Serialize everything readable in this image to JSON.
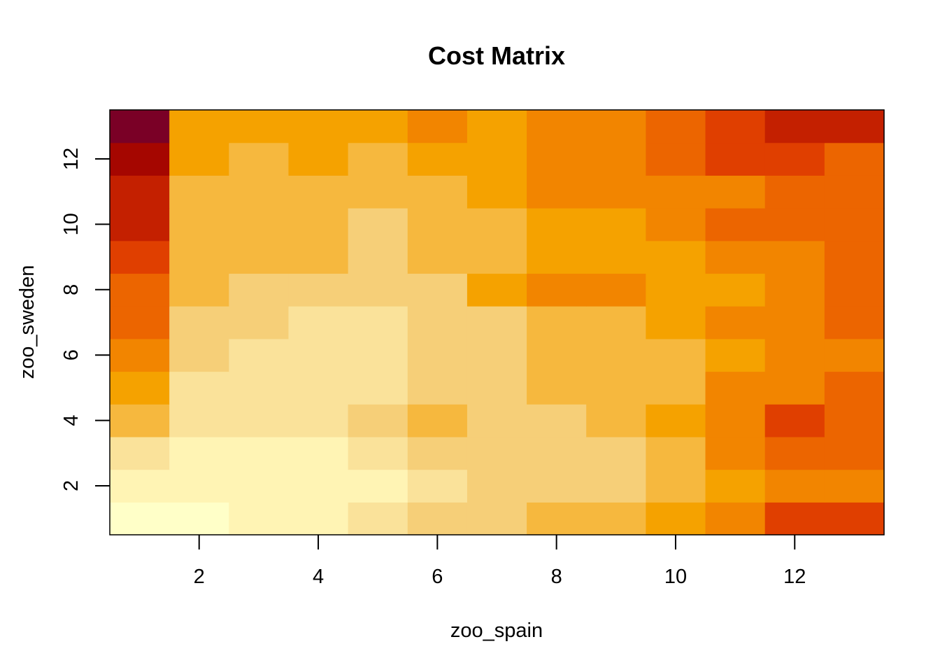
{
  "chart_data": {
    "type": "heatmap",
    "title": "Cost Matrix",
    "xlabel": "zoo_spain",
    "ylabel": "zoo_sweden",
    "x": [
      1,
      2,
      3,
      4,
      5,
      6,
      7,
      8,
      9,
      10,
      11,
      12,
      13
    ],
    "y": [
      1,
      2,
      3,
      4,
      5,
      6,
      7,
      8,
      9,
      10,
      11,
      12,
      13
    ],
    "xlim": [
      0.5,
      13.5
    ],
    "ylim": [
      0.5,
      13.5
    ],
    "xticks": [
      2,
      4,
      6,
      8,
      10,
      12
    ],
    "yticks": [
      2,
      4,
      6,
      8,
      10,
      12
    ],
    "color_scale": "heat.colors (reversed)",
    "palette": [
      "#FFFFC8",
      "#FFF4B4",
      "#FAE29A",
      "#F6CF78",
      "#F6B83E",
      "#F5A200",
      "#F28500",
      "#EC6500",
      "#E03F00",
      "#C42000",
      "#A50600",
      "#7A0026"
    ],
    "z": [
      [
        0,
        0,
        1,
        1,
        2,
        3,
        3,
        4,
        4,
        5,
        6,
        8,
        8
      ],
      [
        1,
        1,
        1,
        1,
        1,
        2,
        3,
        3,
        3,
        4,
        5,
        6,
        6
      ],
      [
        2,
        1,
        1,
        1,
        2,
        3,
        3,
        3,
        3,
        4,
        6,
        7,
        7
      ],
      [
        4,
        2,
        2,
        2,
        3,
        4,
        3,
        3,
        4,
        5,
        6,
        8,
        7
      ],
      [
        5,
        2,
        2,
        2,
        2,
        3,
        3,
        4,
        4,
        4,
        6,
        6,
        7
      ],
      [
        6,
        3,
        2,
        2,
        2,
        3,
        3,
        4,
        4,
        4,
        5,
        6,
        6
      ],
      [
        7,
        3,
        3,
        2,
        2,
        3,
        3,
        4,
        4,
        5,
        6,
        6,
        7
      ],
      [
        7,
        4,
        3,
        3,
        3,
        3,
        5,
        6,
        6,
        5,
        5,
        6,
        7
      ],
      [
        8,
        4,
        4,
        4,
        3,
        4,
        4,
        5,
        5,
        5,
        6,
        6,
        7
      ],
      [
        9,
        4,
        4,
        4,
        3,
        4,
        4,
        5,
        5,
        6,
        7,
        7,
        7
      ],
      [
        9,
        4,
        4,
        4,
        4,
        4,
        5,
        6,
        6,
        6,
        6,
        7,
        7
      ],
      [
        10,
        5,
        4,
        5,
        4,
        5,
        5,
        6,
        6,
        7,
        8,
        8,
        7
      ],
      [
        11,
        5,
        5,
        5,
        5,
        6,
        5,
        6,
        6,
        7,
        8,
        9,
        9
      ]
    ]
  }
}
